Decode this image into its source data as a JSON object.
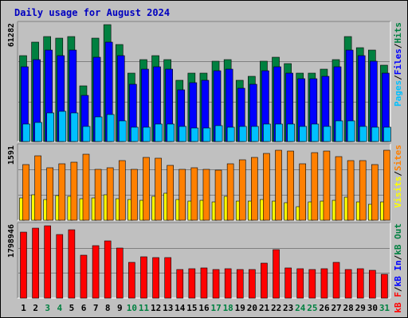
{
  "title": "Daily usage for August 2024",
  "colors": {
    "background": "#c0c0c0",
    "title": "#0000c0",
    "hits": "#008040",
    "files": "#0000ff",
    "pages": "#00c0ff",
    "visits": "#ffff00",
    "sites": "#ff8000",
    "kb_in": "#ff0000",
    "kb_out": "#008040",
    "weekend_label": "#008040",
    "weekday_label": "#000000"
  },
  "chart_data": [
    {
      "type": "bar",
      "panel": "hits-files-pages",
      "ymax_label": "61282",
      "ylim": [
        0,
        61282
      ],
      "legend": [
        "Pages",
        "Files",
        "Hits"
      ],
      "categories": [
        "1",
        "2",
        "3",
        "4",
        "5",
        "6",
        "7",
        "8",
        "9",
        "10",
        "11",
        "12",
        "13",
        "14",
        "15",
        "16",
        "17",
        "18",
        "19",
        "20",
        "21",
        "22",
        "23",
        "24",
        "25",
        "26",
        "27",
        "28",
        "29",
        "30",
        "31"
      ],
      "series": [
        {
          "name": "Hits",
          "values": [
            45000,
            52000,
            55000,
            54000,
            55000,
            29000,
            54000,
            61282,
            51000,
            36000,
            43000,
            45000,
            43000,
            32000,
            36000,
            36000,
            42000,
            43000,
            32000,
            34000,
            42000,
            44000,
            41000,
            36000,
            36000,
            38000,
            43000,
            55000,
            49000,
            48000,
            40000
          ]
        },
        {
          "name": "Files",
          "values": [
            39000,
            43000,
            48000,
            45000,
            48000,
            24000,
            44000,
            52000,
            45000,
            30000,
            38000,
            39000,
            38000,
            27000,
            31000,
            32000,
            37000,
            38000,
            28000,
            30000,
            37000,
            39000,
            36000,
            33000,
            33000,
            34000,
            39000,
            48000,
            45000,
            42000,
            36000
          ]
        },
        {
          "name": "Pages",
          "values": [
            9000,
            10000,
            15000,
            16000,
            15000,
            8000,
            13000,
            14000,
            11000,
            7500,
            7500,
            9000,
            9000,
            8000,
            7000,
            7000,
            8500,
            7500,
            8000,
            8000,
            9000,
            9000,
            9000,
            8000,
            9000,
            8000,
            11000,
            11000,
            8000,
            7500,
            7500
          ]
        }
      ]
    },
    {
      "type": "bar",
      "panel": "visits-sites",
      "ymax_label": "1591",
      "ylim": [
        0,
        1591
      ],
      "legend": [
        "Visits",
        "Sites"
      ],
      "categories": [
        "1",
        "2",
        "3",
        "4",
        "5",
        "6",
        "7",
        "8",
        "9",
        "10",
        "11",
        "12",
        "13",
        "14",
        "15",
        "16",
        "17",
        "18",
        "19",
        "20",
        "21",
        "22",
        "23",
        "24",
        "25",
        "26",
        "27",
        "28",
        "29",
        "30",
        "31"
      ],
      "series": [
        {
          "name": "Visits",
          "values": [
            480,
            550,
            450,
            540,
            520,
            470,
            480,
            560,
            460,
            450,
            440,
            520,
            580,
            450,
            410,
            440,
            400,
            520,
            420,
            420,
            450,
            420,
            380,
            300,
            400,
            420,
            430,
            500,
            400,
            350,
            400
          ]
        },
        {
          "name": "Sites",
          "values": [
            1210,
            1400,
            1140,
            1220,
            1270,
            1440,
            1100,
            1140,
            1300,
            1100,
            1370,
            1350,
            1190,
            1100,
            1140,
            1100,
            1090,
            1230,
            1320,
            1370,
            1450,
            1520,
            1510,
            1230,
            1470,
            1500,
            1380,
            1290,
            1290,
            1210,
            1530
          ]
        }
      ]
    },
    {
      "type": "bar",
      "panel": "kbytes",
      "ymax_label": "1798946",
      "ylim": [
        0,
        1798946
      ],
      "legend": [
        "kB F",
        "kB In",
        "kB Out"
      ],
      "categories": [
        "1",
        "2",
        "3",
        "4",
        "5",
        "6",
        "7",
        "8",
        "9",
        "10",
        "11",
        "12",
        "13",
        "14",
        "15",
        "16",
        "17",
        "18",
        "19",
        "20",
        "21",
        "22",
        "23",
        "24",
        "25",
        "26",
        "27",
        "28",
        "29",
        "30",
        "31"
      ],
      "series": [
        {
          "name": "kB F",
          "values": [
            1650000,
            1740000,
            1798946,
            1580000,
            1700000,
            1060000,
            1300000,
            1430000,
            1250000,
            890000,
            1030000,
            1000000,
            1005000,
            710000,
            740000,
            750000,
            720000,
            740000,
            720000,
            710000,
            860000,
            1200000,
            750000,
            730000,
            720000,
            730000,
            880000,
            710000,
            730000,
            700000,
            600000
          ]
        }
      ]
    }
  ]
}
